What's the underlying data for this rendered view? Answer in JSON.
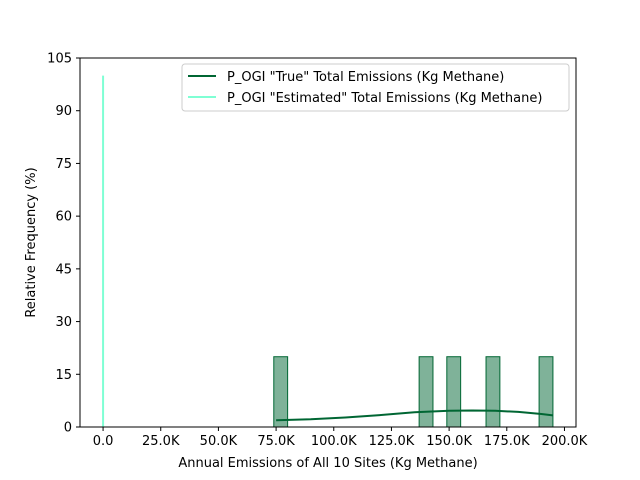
{
  "chart_data": {
    "type": "histogram",
    "xlabel": "Annual Emissions of All 10 Sites (Kg Methane)",
    "ylabel": "Relative Frequency (%)",
    "xlim": [
      -10000,
      205000
    ],
    "ylim": [
      0,
      105
    ],
    "x_ticks": [
      0,
      25000,
      50000,
      75000,
      100000,
      125000,
      150000,
      175000,
      200000
    ],
    "x_tick_labels": [
      "0.0",
      "25.0K",
      "50.0K",
      "75.0K",
      "100.0K",
      "125.0K",
      "150.0K",
      "175.0K",
      "200.0K"
    ],
    "y_ticks": [
      0,
      15,
      30,
      45,
      60,
      75,
      90,
      105
    ],
    "y_tick_labels": [
      "0",
      "15",
      "30",
      "45",
      "60",
      "75",
      "90",
      "105"
    ],
    "legend_position": "top-right",
    "series": [
      {
        "name": "P_OGI \"True\" Total Emissions (Kg Methane)",
        "color": "#006633",
        "bar_fill": "#7fb299",
        "bins": [
          {
            "x0": 74000,
            "x1": 80000,
            "value": 20
          },
          {
            "x0": 137000,
            "x1": 143000,
            "value": 20
          },
          {
            "x0": 149000,
            "x1": 155000,
            "value": 20
          },
          {
            "x0": 166000,
            "x1": 172000,
            "value": 20
          },
          {
            "x0": 189000,
            "x1": 195000,
            "value": 20
          }
        ],
        "kde": {
          "x": [
            75000,
            90000,
            105000,
            120000,
            135000,
            150000,
            160000,
            170000,
            180000,
            190000,
            195000
          ],
          "y": [
            1.9,
            2.2,
            2.7,
            3.4,
            4.2,
            4.6,
            4.7,
            4.6,
            4.3,
            3.7,
            3.3
          ]
        }
      },
      {
        "name": "P_OGI \"Estimated\" Total Emissions (Kg Methane)",
        "color": "#7fffd4",
        "bins": [
          {
            "x0": 0,
            "x1": 0,
            "value": 100
          }
        ]
      }
    ]
  }
}
